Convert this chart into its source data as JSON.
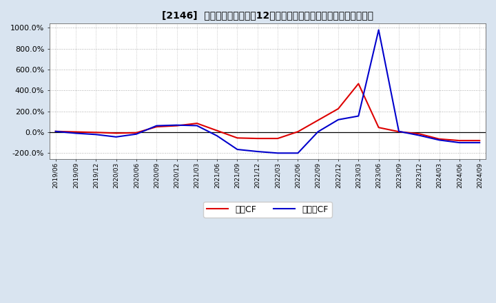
{
  "title": "[2146]  キャッシュフローの12か月移動合計の対前年同期増減率の推移",
  "background_color": "#d9e4f0",
  "plot_bg_color": "#ffffff",
  "ylim": [
    -260,
    1040
  ],
  "yticks": [
    -200,
    0,
    200,
    400,
    600,
    800,
    1000
  ],
  "legend_labels": [
    "営業CF",
    "フリーCF"
  ],
  "line_color_op": "#dd0000",
  "line_color_free": "#0000cc",
  "dates": [
    "2019/06",
    "2019/09",
    "2019/12",
    "2020/03",
    "2020/06",
    "2020/09",
    "2020/12",
    "2021/03",
    "2021/06",
    "2021/09",
    "2021/12",
    "2022/03",
    "2022/06",
    "2022/09",
    "2022/12",
    "2023/03",
    "2023/06",
    "2023/09",
    "2023/12",
    "2024/03",
    "2024/06",
    "2024/09"
  ],
  "operating_cf": [
    8,
    3,
    -2,
    -9,
    -5,
    52,
    62,
    85,
    15,
    -55,
    -60,
    -60,
    5,
    115,
    225,
    465,
    45,
    5,
    -15,
    -65,
    -80,
    -80
  ],
  "free_cf": [
    8,
    -10,
    -22,
    -45,
    -18,
    62,
    68,
    63,
    -35,
    -165,
    -185,
    -200,
    -200,
    5,
    120,
    155,
    980,
    8,
    -30,
    -75,
    -100,
    -100
  ]
}
